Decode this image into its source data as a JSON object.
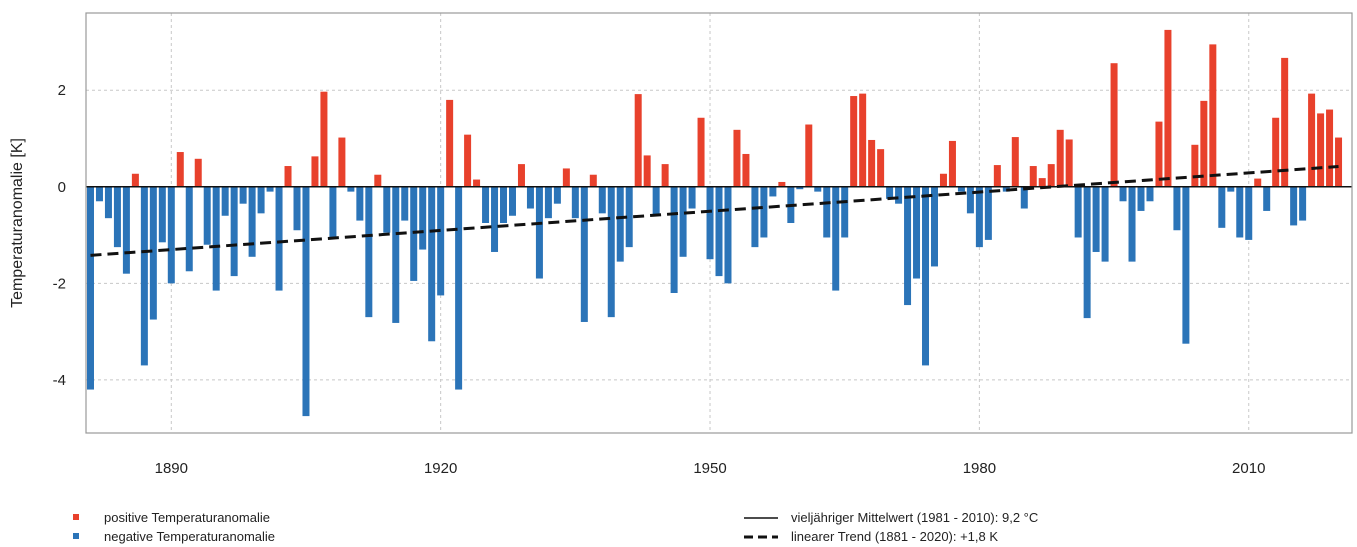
{
  "chart_data": {
    "type": "bar",
    "ylabel": "Temperaturanomalie [K]",
    "xlim": [
      1880.5,
      2021.5
    ],
    "ylim": [
      -5.1,
      3.6
    ],
    "x_ticks": [
      1890,
      1920,
      1950,
      1980,
      2010
    ],
    "y_ticks": [
      -4,
      -2,
      0,
      2
    ],
    "grid": true,
    "colors": {
      "positive": "#e8412c",
      "negative": "#2b74b8",
      "trend": "#111111",
      "grid": "#c8c8c8",
      "frame": "#999999"
    },
    "years": [
      1881,
      1882,
      1883,
      1884,
      1885,
      1886,
      1887,
      1888,
      1889,
      1890,
      1891,
      1892,
      1893,
      1894,
      1895,
      1896,
      1897,
      1898,
      1899,
      1900,
      1901,
      1902,
      1903,
      1904,
      1905,
      1906,
      1907,
      1908,
      1909,
      1910,
      1911,
      1912,
      1913,
      1914,
      1915,
      1916,
      1917,
      1918,
      1919,
      1920,
      1921,
      1922,
      1923,
      1924,
      1925,
      1926,
      1927,
      1928,
      1929,
      1930,
      1931,
      1932,
      1933,
      1934,
      1935,
      1936,
      1937,
      1938,
      1939,
      1940,
      1941,
      1942,
      1943,
      1944,
      1945,
      1946,
      1947,
      1948,
      1949,
      1950,
      1951,
      1952,
      1953,
      1954,
      1955,
      1956,
      1957,
      1958,
      1959,
      1960,
      1961,
      1962,
      1963,
      1964,
      1965,
      1966,
      1967,
      1968,
      1969,
      1970,
      1971,
      1972,
      1973,
      1974,
      1975,
      1976,
      1977,
      1978,
      1979,
      1980,
      1981,
      1982,
      1983,
      1984,
      1985,
      1986,
      1987,
      1988,
      1989,
      1990,
      1991,
      1992,
      1993,
      1994,
      1995,
      1996,
      1997,
      1998,
      1999,
      2000,
      2001,
      2002,
      2003,
      2004,
      2005,
      2006,
      2007,
      2008,
      2009,
      2010,
      2011,
      2012,
      2013,
      2014,
      2015,
      2016,
      2017,
      2018,
      2019,
      2020
    ],
    "values": [
      -4.2,
      -0.3,
      -0.65,
      -1.25,
      -1.8,
      0.27,
      -3.7,
      -2.75,
      -1.15,
      -2.0,
      0.72,
      -1.75,
      0.58,
      -1.2,
      -2.15,
      -0.6,
      -1.85,
      -0.35,
      -1.45,
      -0.55,
      -0.1,
      -2.15,
      0.43,
      -0.9,
      -4.75,
      0.63,
      1.97,
      -1.05,
      1.02,
      -0.1,
      -0.7,
      -2.7,
      0.25,
      -0.95,
      -2.82,
      -0.7,
      -1.95,
      -1.3,
      -3.2,
      -2.25,
      1.8,
      -4.2,
      1.08,
      0.15,
      -0.75,
      -1.35,
      -0.75,
      -0.6,
      0.47,
      -0.45,
      -1.9,
      -0.65,
      -0.35,
      0.38,
      -0.65,
      -2.8,
      0.25,
      -0.55,
      -2.7,
      -1.55,
      -1.25,
      1.92,
      0.65,
      -0.6,
      0.47,
      -2.2,
      -1.45,
      -0.45,
      1.43,
      -1.5,
      -1.85,
      -2.0,
      1.18,
      0.68,
      -1.25,
      -1.05,
      -0.2,
      0.1,
      -0.75,
      -0.05,
      1.29,
      -0.1,
      -1.05,
      -2.15,
      -1.05,
      1.88,
      1.93,
      0.97,
      0.78,
      -0.25,
      -0.35,
      -2.45,
      -1.9,
      -3.7,
      -1.65,
      0.27,
      0.95,
      -0.1,
      -0.55,
      -1.25,
      -1.1,
      0.45,
      -0.1,
      1.03,
      -0.45,
      0.43,
      0.18,
      0.47,
      1.18,
      0.98,
      -1.05,
      -2.72,
      -1.35,
      -1.55,
      2.56,
      -0.3,
      -1.55,
      -0.5,
      -0.3,
      1.35,
      3.25,
      -0.9,
      -3.25,
      0.87,
      1.78,
      2.95,
      -0.85,
      -0.1,
      -1.05,
      -1.1,
      0.17,
      -0.5,
      1.43,
      2.67,
      -0.8,
      -0.7,
      1.93,
      1.52,
      1.6,
      1.02
    ],
    "trend": {
      "start_year": 1881,
      "start_value": -1.42,
      "end_year": 2020,
      "end_value": 0.42
    },
    "legend": {
      "positive": "positive Temperaturanomalie",
      "negative": "negative Temperaturanomalie",
      "mean": "vieljähriger Mittelwert (1981 - 2010): 9,2 °C",
      "trend": "linearer Trend (1881 - 2020): +1,8 K"
    }
  }
}
